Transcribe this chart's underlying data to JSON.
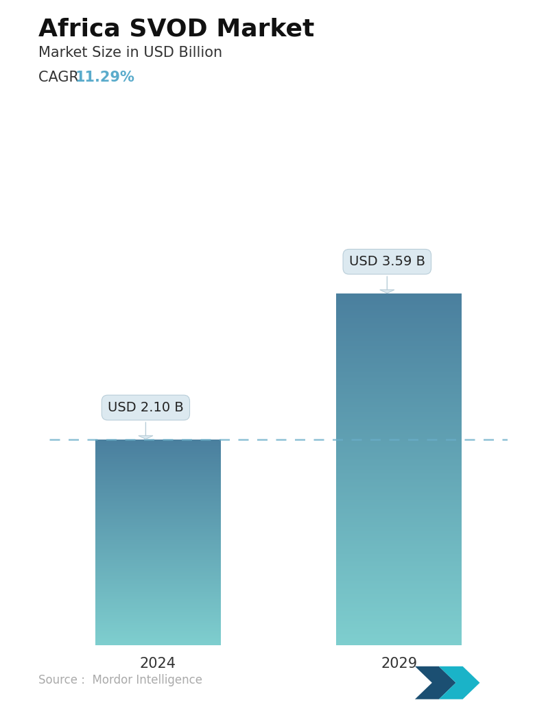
{
  "title": "Africa SVOD Market",
  "subtitle": "Market Size in USD Billion",
  "cagr_label": "CAGR",
  "cagr_value": "11.29%",
  "cagr_color": "#5aabcb",
  "categories": [
    "2024",
    "2029"
  ],
  "values": [
    2.1,
    3.59
  ],
  "value_labels": [
    "USD 2.10 B",
    "USD 3.59 B"
  ],
  "bar_color_top": "#4a7f9e",
  "bar_color_bottom": "#7ecece",
  "dashed_line_color": "#6aaec8",
  "dashed_line_value": 2.1,
  "source_text": "Source :  Mordor Intelligence",
  "source_color": "#aaaaaa",
  "background_color": "#ffffff",
  "title_fontsize": 26,
  "subtitle_fontsize": 15,
  "cagr_fontsize": 15,
  "tick_fontsize": 15,
  "label_fontsize": 14,
  "source_fontsize": 12,
  "ylim": [
    0,
    4.2
  ],
  "callout_bg": "#dce9f0",
  "callout_edge": "#b8cdd8"
}
